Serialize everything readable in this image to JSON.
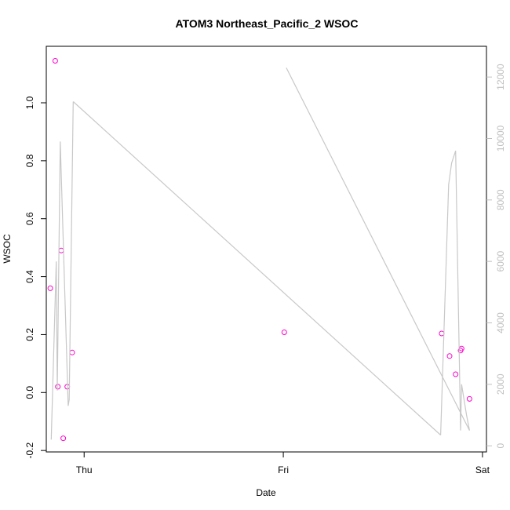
{
  "chart_data": {
    "type": "scatter",
    "title": "ATOM3 Northeast_Pacific_2 WSOC",
    "xlabel": "Date",
    "ylabel": "WSOC",
    "x_ticks": [
      {
        "label": "Thu",
        "value": 1.0
      },
      {
        "label": "Fri",
        "value": 2.0
      },
      {
        "label": "Sat",
        "value": 3.0
      }
    ],
    "xlim": [
      0.81,
      3.02
    ],
    "ylim": [
      -0.205,
      1.195
    ],
    "y_ticks": [
      -0.2,
      0.0,
      0.2,
      0.4,
      0.6,
      0.8,
      1.0
    ],
    "y2lim": [
      -200,
      13000
    ],
    "y2_ticks": [
      0,
      2000,
      4000,
      6000,
      8000,
      10000,
      12000
    ],
    "grid": false,
    "series": [
      {
        "kind": "points",
        "color": "#ff00cc",
        "x": [
          0.83,
          0.855,
          0.868,
          0.885,
          0.895,
          0.915,
          0.94,
          2.005,
          2.795,
          2.835,
          2.865,
          2.89,
          2.895,
          2.935
        ],
        "y": [
          0.36,
          1.145,
          0.02,
          0.49,
          -0.158,
          0.02,
          0.138,
          0.208,
          0.204,
          0.126,
          0.063,
          0.145,
          0.152,
          -0.022
        ]
      },
      {
        "kind": "line",
        "axis": "right",
        "color": "#c8c8c8",
        "x": [
          0.835,
          0.86,
          0.865,
          0.88,
          0.92,
          0.925,
          0.945
        ],
        "y": [
          200,
          6000,
          1800,
          9900,
          1300,
          1500,
          11200
        ]
      },
      {
        "kind": "line",
        "axis": "right",
        "color": "#c8c8c8",
        "x": [
          0.945,
          2.79
        ],
        "y": [
          11200,
          350
        ]
      },
      {
        "kind": "line",
        "axis": "right",
        "color": "#c8c8c8",
        "x": [
          2.015,
          2.935
        ],
        "y": [
          12300,
          500
        ]
      },
      {
        "kind": "line",
        "axis": "right",
        "color": "#c8c8c8",
        "x": [
          2.79,
          2.83,
          2.845,
          2.865,
          2.89,
          2.895,
          2.92,
          2.935
        ],
        "y": [
          350,
          8500,
          9200,
          9600,
          500,
          2000,
          1000,
          500
        ]
      }
    ]
  }
}
